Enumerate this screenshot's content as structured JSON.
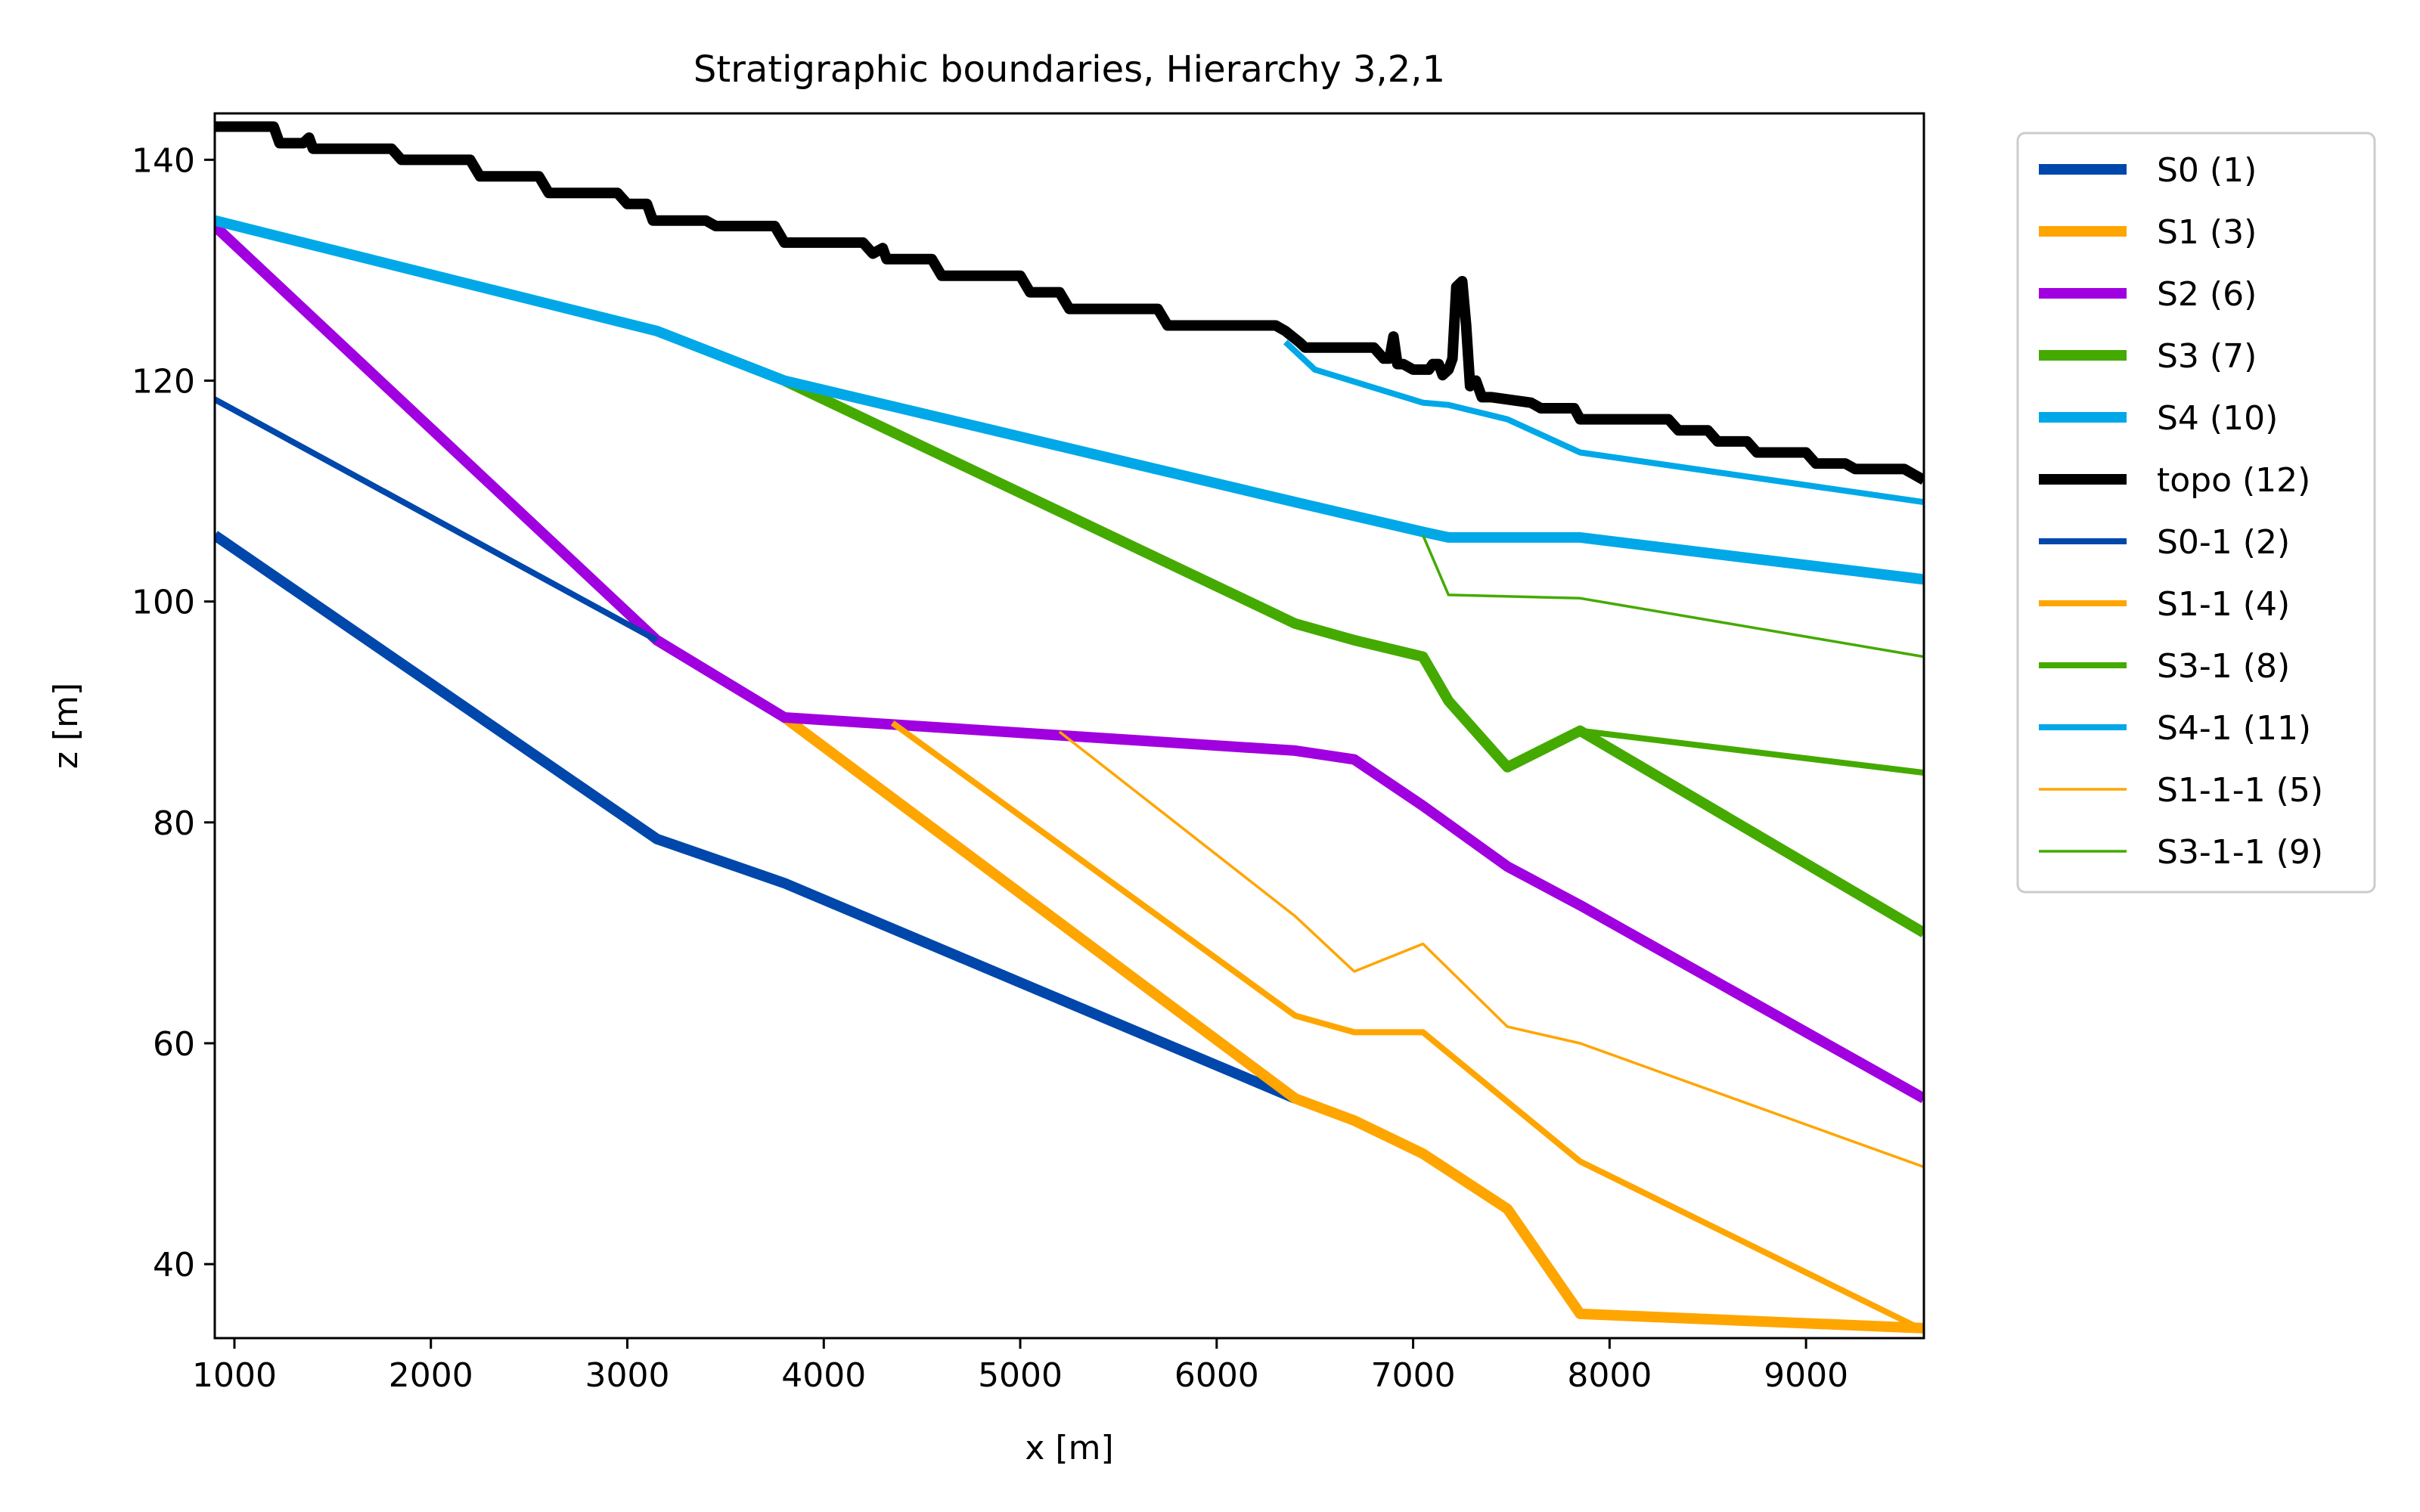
{
  "chart_data": {
    "type": "line",
    "title": "Stratigraphic boundaries, Hierarchy 3,2,1",
    "xlabel": "x [m]",
    "ylabel": "z [m]",
    "xlim": [
      900,
      9600
    ],
    "ylim": [
      33.3,
      144.2
    ],
    "xticks": [
      1000,
      2000,
      3000,
      4000,
      5000,
      6000,
      7000,
      8000,
      9000
    ],
    "yticks": [
      40,
      60,
      80,
      100,
      120,
      140
    ],
    "grid": false,
    "legend_position": "outside-right-top",
    "series": [
      {
        "name": "S0 (1)",
        "color": "#0047AB",
        "weight": "thick",
        "x": [
          900,
          3150,
          3800,
          6400
        ],
        "y": [
          106,
          78.5,
          74.5,
          55
        ]
      },
      {
        "name": "S1 (3)",
        "color": "#FFA500",
        "weight": "thick",
        "x": [
          3800,
          6400,
          6700,
          7050,
          7480,
          7850,
          9600
        ],
        "y": [
          89.5,
          55,
          53,
          50,
          45,
          35.5,
          34.2
        ]
      },
      {
        "name": "S2 (6)",
        "color": "#A000E0",
        "weight": "thick",
        "x": [
          900,
          3150,
          3800,
          6400,
          6700,
          7050,
          7480,
          7850,
          9600
        ],
        "y": [
          134,
          96.5,
          89.5,
          86.5,
          85.7,
          81.5,
          76,
          72.5,
          55
        ]
      },
      {
        "name": "S3 (7)",
        "color": "#44AA00",
        "weight": "thick",
        "x": [
          3800,
          6400,
          6700,
          7050,
          7180,
          7480,
          7850,
          9600
        ],
        "y": [
          120,
          98,
          96.5,
          95,
          91,
          85,
          88.3,
          70
        ]
      },
      {
        "name": "S4 (10)",
        "color": "#00A8E8",
        "weight": "thick",
        "x": [
          900,
          3150,
          3800,
          6400,
          7050,
          7180,
          7850,
          9600
        ],
        "y": [
          134.5,
          124.5,
          120,
          109,
          106.3,
          105.8,
          105.8,
          102
        ]
      },
      {
        "name": "topo (12)",
        "color": "#000000",
        "weight": "thick",
        "x": [
          900,
          1200,
          1230,
          1350,
          1380,
          1400,
          1800,
          1850,
          2200,
          2250,
          2550,
          2600,
          2950,
          3000,
          3100,
          3130,
          3400,
          3450,
          3750,
          3800,
          4200,
          4250,
          4300,
          4320,
          4550,
          4600,
          5000,
          5050,
          5200,
          5250,
          5700,
          5750,
          6300,
          6350,
          6420,
          6450,
          6800,
          6850,
          6880,
          6900,
          6920,
          6950,
          7000,
          7080,
          7100,
          7130,
          7150,
          7180,
          7200,
          7220,
          7250,
          7270,
          7290,
          7320,
          7350,
          7400,
          7600,
          7650,
          7820,
          7850,
          8300,
          8350,
          8500,
          8550,
          8700,
          8750,
          9000,
          9050,
          9200,
          9250,
          9500,
          9550,
          9600
        ],
        "y": [
          143,
          143,
          141.5,
          141.5,
          142,
          141,
          141,
          140,
          140,
          138.5,
          138.5,
          137,
          137,
          136,
          136,
          134.5,
          134.5,
          134,
          134,
          132.5,
          132.5,
          131.5,
          132,
          131,
          131,
          129.5,
          129.5,
          128,
          128,
          126.5,
          126.5,
          125,
          125,
          124.5,
          123.5,
          123,
          123,
          122,
          122,
          124,
          121.5,
          121.5,
          121,
          121,
          121.5,
          121.5,
          120.5,
          121,
          122,
          128.5,
          129,
          125,
          119.5,
          120,
          118.5,
          118.5,
          118,
          117.5,
          117.5,
          116.5,
          116.5,
          115.5,
          115.5,
          114.5,
          114.5,
          113.5,
          113.5,
          112.5,
          112.5,
          112,
          112,
          111.5,
          111
        ]
      },
      {
        "name": "S0-1 (2)",
        "color": "#0047AB",
        "weight": "medium",
        "x": [
          900,
          3150
        ],
        "y": [
          118.3,
          96.5
        ]
      },
      {
        "name": "S1-1 (4)",
        "color": "#FFA500",
        "weight": "medium",
        "x": [
          4350,
          6400,
          6700,
          7050,
          7850,
          9600
        ],
        "y": [
          89,
          62.5,
          61,
          61,
          49.3,
          34
        ]
      },
      {
        "name": "S3-1 (8)",
        "color": "#44AA00",
        "weight": "medium",
        "x": [
          7850,
          9600
        ],
        "y": [
          88.3,
          84.5
        ]
      },
      {
        "name": "S4-1 (11)",
        "color": "#00A8E8",
        "weight": "medium",
        "x": [
          6350,
          6500,
          7050,
          7180,
          7480,
          7850,
          9600
        ],
        "y": [
          123.5,
          121,
          118,
          117.8,
          116.5,
          113.5,
          109
        ]
      },
      {
        "name": "S1-1-1 (5)",
        "color": "#FFA500",
        "weight": "thin",
        "x": [
          5200,
          6400,
          6700,
          7050,
          7480,
          7850,
          9600
        ],
        "y": [
          88.2,
          71.5,
          66.5,
          69,
          61.5,
          60,
          48.8
        ]
      },
      {
        "name": "S3-1-1 (9)",
        "color": "#44AA00",
        "weight": "thin",
        "x": [
          7050,
          7180,
          7850,
          9600
        ],
        "y": [
          106,
          100.6,
          100.3,
          95
        ]
      }
    ]
  }
}
